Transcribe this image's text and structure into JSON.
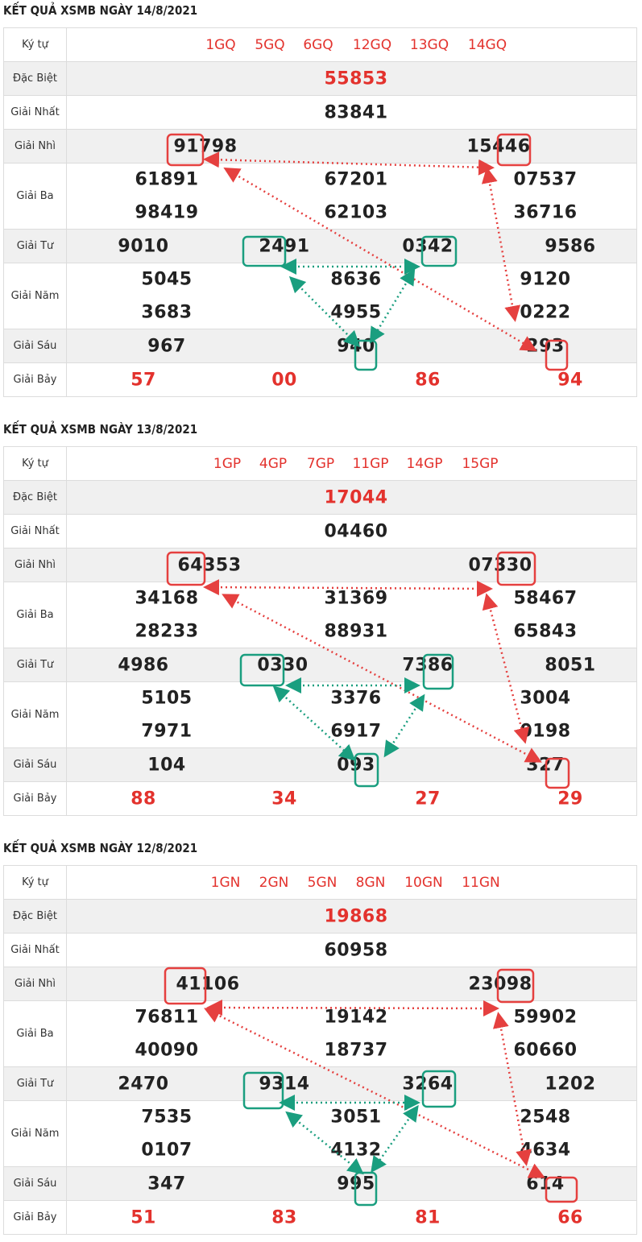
{
  "label_kytu": "Ký tự",
  "prize_labels": {
    "db": "Đặc Biệt",
    "g1": "Giải Nhất",
    "g2": "Giải Nhì",
    "g3": "Giải Ba",
    "g4": "Giải Tư",
    "g5": "Giải Năm",
    "g6": "Giải Sáu",
    "g7": "Giải Bảy"
  },
  "colors": {
    "red_box": "#e5403f",
    "green_box": "#1a9e7f",
    "prize_red": "#e3322d"
  },
  "days": [
    {
      "title": "KẾT QUẢ XSMB NGÀY 14/8/2021",
      "codes": [
        "1GQ",
        "5GQ",
        "6GQ",
        "12GQ",
        "13GQ",
        "14GQ"
      ],
      "db": "55853",
      "g1": "83841",
      "g2": [
        "91798",
        "15446"
      ],
      "g3": [
        "61891",
        "67201",
        "07537",
        "98419",
        "62103",
        "36716"
      ],
      "g4": [
        "9010",
        "2491",
        "0342",
        "9586"
      ],
      "g5": [
        "5045",
        "8636",
        "9120",
        "3683",
        "4955",
        "0222"
      ],
      "g6": [
        "967",
        "940",
        "293"
      ],
      "g7": [
        "57",
        "00",
        "86",
        "94"
      ]
    },
    {
      "title": "KẾT QUẢ XSMB NGÀY 13/8/2021",
      "codes": [
        "1GP",
        "4GP",
        "7GP",
        "11GP",
        "14GP",
        "15GP"
      ],
      "db": "17044",
      "g1": "04460",
      "g2": [
        "64353",
        "07330"
      ],
      "g3": [
        "34168",
        "31369",
        "58467",
        "28233",
        "88931",
        "65843"
      ],
      "g4": [
        "4986",
        "0330",
        "7386",
        "8051"
      ],
      "g5": [
        "5105",
        "3376",
        "3004",
        "7971",
        "6917",
        "0198"
      ],
      "g6": [
        "104",
        "093",
        "327"
      ],
      "g7": [
        "88",
        "34",
        "27",
        "29"
      ]
    },
    {
      "title": "KẾT QUẢ XSMB NGÀY 12/8/2021",
      "codes": [
        "1GN",
        "2GN",
        "5GN",
        "8GN",
        "10GN",
        "11GN"
      ],
      "db": "19868",
      "g1": "60958",
      "g2": [
        "41106",
        "23098"
      ],
      "g3": [
        "76811",
        "19142",
        "59902",
        "40090",
        "18737",
        "60660"
      ],
      "g4": [
        "2470",
        "9314",
        "3264",
        "1202"
      ],
      "g5": [
        "7535",
        "3051",
        "2548",
        "0107",
        "4132",
        "4634"
      ],
      "g6": [
        "347",
        "995",
        "614"
      ],
      "g7": [
        "51",
        "83",
        "81",
        "66"
      ]
    }
  ]
}
